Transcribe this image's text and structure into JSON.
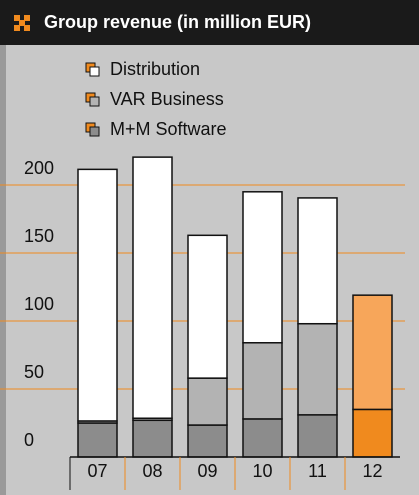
{
  "chart_data": {
    "type": "stacked_bar",
    "title": "Group revenue (in million EUR)",
    "categories": [
      "07",
      "08",
      "09",
      "10",
      "11",
      "12"
    ],
    "series": [
      {
        "name": "M+M Software",
        "color": "#8c8c8c",
        "colors": [
          "#8c8c8c",
          "#8c8c8c",
          "#8c8c8c",
          "#8c8c8c",
          "#8c8c8c",
          "#f08a1e"
        ],
        "values": [
          25,
          27,
          23.5,
          28,
          31,
          35
        ]
      },
      {
        "name": "VAR Business",
        "color": "#b3b3b3",
        "colors": [
          "#b3b3b3",
          "#b3b3b3",
          "#b3b3b3",
          "#b3b3b3",
          "#b3b3b3",
          "#f7a65a"
        ],
        "values": [
          1.5,
          1.5,
          34.5,
          56,
          67,
          84
        ]
      },
      {
        "name": "Distribution",
        "color": "#ffffff",
        "colors": [
          "#ffffff",
          "#ffffff",
          "#ffffff",
          "#ffffff",
          "#ffffff",
          "#ffffff"
        ],
        "values": [
          185,
          192,
          105,
          111,
          92.5,
          0
        ]
      }
    ],
    "ylim": [
      0,
      225
    ],
    "yticks": [
      0,
      50,
      100,
      150,
      200
    ],
    "grid": true,
    "grid_color": "#f08a1e"
  }
}
